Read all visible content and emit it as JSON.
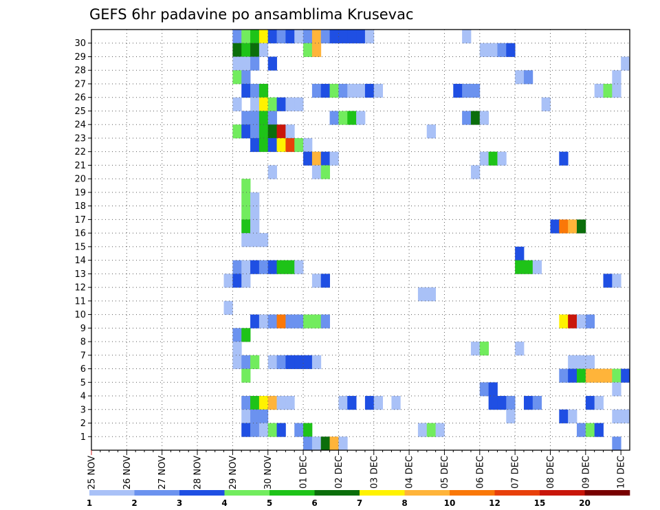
{
  "chart_data": {
    "type": "heatmap",
    "title": "GEFS 6hr padavine po ansamblima Krusevac",
    "xlabel": "",
    "ylabel": "",
    "x_ticks": [
      "25 NOV",
      "26 NOV",
      "27 NOV",
      "28 NOV",
      "29 NOV",
      "30 NOV",
      "01 DEC",
      "02 DEC",
      "03 DEC",
      "04 DEC",
      "05 DEC",
      "06 DEC",
      "07 DEC",
      "08 DEC",
      "09 DEC",
      "10 DEC"
    ],
    "x_tick_step_count": 4,
    "time_steps_per_day": 4,
    "time_step_count": 61,
    "y_ticks": [
      "1",
      "2",
      "3",
      "4",
      "5",
      "6",
      "7",
      "8",
      "9",
      "10",
      "11",
      "12",
      "13",
      "14",
      "15",
      "16",
      "17",
      "18",
      "19",
      "20",
      "21",
      "22",
      "23",
      "24",
      "25",
      "26",
      "27",
      "28",
      "29",
      "30"
    ],
    "member_count": 31,
    "grid": true,
    "legend_position": "bottom",
    "legend": {
      "labels": [
        "1",
        "2",
        "3",
        "4",
        "5",
        "6",
        "7",
        "8",
        "10",
        "12",
        "15",
        "20"
      ],
      "colors": [
        "#a9c1f7",
        "#6b92ef",
        "#1f4fe3",
        "#72ec5e",
        "#1ec318",
        "#0b6e0b",
        "#fff200",
        "#ffb43a",
        "#fa7808",
        "#e8400a",
        "#c9160a",
        "#780000"
      ]
    },
    "values_note": "cells: [member, time_step, colour_class]; time_step 0 = 25 NOV 00Z, member 0 = unlabeled bottom row",
    "cells": [
      [
        30,
        16,
        2
      ],
      [
        30,
        17,
        4
      ],
      [
        30,
        18,
        5
      ],
      [
        30,
        19,
        7
      ],
      [
        30,
        20,
        3
      ],
      [
        30,
        21,
        2
      ],
      [
        30,
        22,
        3
      ],
      [
        30,
        23,
        1
      ],
      [
        30,
        24,
        2
      ],
      [
        30,
        25,
        8
      ],
      [
        30,
        26,
        2
      ],
      [
        30,
        27,
        3
      ],
      [
        30,
        28,
        3
      ],
      [
        30,
        29,
        3
      ],
      [
        30,
        30,
        3
      ],
      [
        30,
        31,
        1
      ],
      [
        30,
        42,
        1
      ],
      [
        29,
        16,
        6
      ],
      [
        29,
        17,
        5
      ],
      [
        29,
        18,
        6
      ],
      [
        29,
        19,
        1
      ],
      [
        29,
        24,
        4
      ],
      [
        29,
        25,
        8
      ],
      [
        29,
        44,
        1
      ],
      [
        29,
        45,
        1
      ],
      [
        29,
        46,
        2
      ],
      [
        29,
        47,
        3
      ],
      [
        28,
        16,
        1
      ],
      [
        28,
        17,
        1
      ],
      [
        28,
        18,
        2
      ],
      [
        28,
        20,
        3
      ],
      [
        28,
        60,
        1
      ],
      [
        27,
        16,
        4
      ],
      [
        27,
        17,
        2
      ],
      [
        27,
        48,
        1
      ],
      [
        27,
        49,
        2
      ],
      [
        27,
        59,
        1
      ],
      [
        26,
        17,
        3
      ],
      [
        26,
        18,
        2
      ],
      [
        26,
        19,
        5
      ],
      [
        26,
        25,
        2
      ],
      [
        26,
        26,
        3
      ],
      [
        26,
        27,
        4
      ],
      [
        26,
        28,
        2
      ],
      [
        26,
        29,
        1
      ],
      [
        26,
        30,
        1
      ],
      [
        26,
        31,
        3
      ],
      [
        26,
        32,
        1
      ],
      [
        26,
        41,
        3
      ],
      [
        26,
        42,
        2
      ],
      [
        26,
        43,
        2
      ],
      [
        26,
        57,
        1
      ],
      [
        26,
        58,
        4
      ],
      [
        26,
        59,
        1
      ],
      [
        25,
        16,
        1
      ],
      [
        25,
        18,
        1
      ],
      [
        25,
        19,
        7
      ],
      [
        25,
        20,
        4
      ],
      [
        25,
        21,
        3
      ],
      [
        25,
        22,
        1
      ],
      [
        25,
        23,
        1
      ],
      [
        25,
        51,
        1
      ],
      [
        24,
        17,
        2
      ],
      [
        24,
        18,
        2
      ],
      [
        24,
        19,
        5
      ],
      [
        24,
        20,
        2
      ],
      [
        24,
        27,
        2
      ],
      [
        24,
        28,
        4
      ],
      [
        24,
        29,
        5
      ],
      [
        24,
        30,
        1
      ],
      [
        24,
        42,
        2
      ],
      [
        24,
        43,
        6
      ],
      [
        24,
        44,
        1
      ],
      [
        23,
        16,
        4
      ],
      [
        23,
        17,
        3
      ],
      [
        23,
        18,
        2
      ],
      [
        23,
        19,
        5
      ],
      [
        23,
        20,
        6
      ],
      [
        23,
        21,
        11
      ],
      [
        23,
        22,
        1
      ],
      [
        23,
        38,
        1
      ],
      [
        22,
        18,
        3
      ],
      [
        22,
        19,
        5
      ],
      [
        22,
        20,
        3
      ],
      [
        22,
        21,
        7
      ],
      [
        22,
        22,
        10
      ],
      [
        22,
        23,
        4
      ],
      [
        22,
        24,
        1
      ],
      [
        21,
        24,
        3
      ],
      [
        21,
        25,
        8
      ],
      [
        21,
        26,
        3
      ],
      [
        21,
        27,
        1
      ],
      [
        21,
        44,
        1
      ],
      [
        21,
        45,
        5
      ],
      [
        21,
        46,
        1
      ],
      [
        21,
        53,
        3
      ],
      [
        20,
        20,
        1
      ],
      [
        20,
        25,
        1
      ],
      [
        20,
        26,
        4
      ],
      [
        20,
        43,
        1
      ],
      [
        19,
        17,
        4
      ],
      [
        18,
        17,
        4
      ],
      [
        18,
        18,
        1
      ],
      [
        17,
        17,
        4
      ],
      [
        17,
        18,
        1
      ],
      [
        16,
        17,
        5
      ],
      [
        16,
        18,
        1
      ],
      [
        16,
        52,
        3
      ],
      [
        16,
        53,
        9
      ],
      [
        16,
        54,
        8
      ],
      [
        16,
        55,
        6
      ],
      [
        15,
        17,
        1
      ],
      [
        15,
        18,
        1
      ],
      [
        15,
        19,
        1
      ],
      [
        14,
        48,
        3
      ],
      [
        13,
        16,
        2
      ],
      [
        13,
        17,
        1
      ],
      [
        13,
        18,
        3
      ],
      [
        13,
        19,
        2
      ],
      [
        13,
        20,
        3
      ],
      [
        13,
        21,
        5
      ],
      [
        13,
        22,
        5
      ],
      [
        13,
        23,
        1
      ],
      [
        13,
        48,
        5
      ],
      [
        13,
        49,
        5
      ],
      [
        13,
        50,
        1
      ],
      [
        12,
        15,
        1
      ],
      [
        12,
        16,
        3
      ],
      [
        12,
        17,
        1
      ],
      [
        12,
        25,
        1
      ],
      [
        12,
        26,
        3
      ],
      [
        12,
        58,
        3
      ],
      [
        12,
        59,
        1
      ],
      [
        11,
        37,
        1
      ],
      [
        11,
        38,
        1
      ],
      [
        10,
        15,
        1
      ],
      [
        9,
        18,
        3
      ],
      [
        9,
        19,
        1
      ],
      [
        9,
        20,
        2
      ],
      [
        9,
        21,
        9
      ],
      [
        9,
        22,
        2
      ],
      [
        9,
        23,
        2
      ],
      [
        9,
        24,
        4
      ],
      [
        9,
        25,
        4
      ],
      [
        9,
        26,
        2
      ],
      [
        9,
        53,
        7
      ],
      [
        9,
        54,
        11
      ],
      [
        9,
        55,
        1
      ],
      [
        9,
        56,
        2
      ],
      [
        8,
        16,
        2
      ],
      [
        8,
        17,
        5
      ],
      [
        7,
        16,
        1
      ],
      [
        7,
        43,
        1
      ],
      [
        7,
        44,
        4
      ],
      [
        7,
        48,
        1
      ],
      [
        6,
        16,
        1
      ],
      [
        6,
        17,
        2
      ],
      [
        6,
        18,
        4
      ],
      [
        6,
        20,
        1
      ],
      [
        6,
        21,
        2
      ],
      [
        6,
        22,
        3
      ],
      [
        6,
        23,
        3
      ],
      [
        6,
        24,
        3
      ],
      [
        6,
        25,
        1
      ],
      [
        6,
        54,
        1
      ],
      [
        6,
        55,
        1
      ],
      [
        6,
        56,
        1
      ],
      [
        5,
        17,
        4
      ],
      [
        5,
        53,
        2
      ],
      [
        5,
        54,
        3
      ],
      [
        5,
        55,
        5
      ],
      [
        5,
        56,
        8
      ],
      [
        5,
        57,
        8
      ],
      [
        5,
        58,
        8
      ],
      [
        5,
        59,
        4
      ],
      [
        5,
        60,
        3
      ],
      [
        4,
        44,
        2
      ],
      [
        4,
        45,
        3
      ],
      [
        4,
        59,
        1
      ],
      [
        3,
        17,
        2
      ],
      [
        3,
        18,
        5
      ],
      [
        3,
        19,
        7
      ],
      [
        3,
        20,
        8
      ],
      [
        3,
        21,
        1
      ],
      [
        3,
        22,
        1
      ],
      [
        3,
        28,
        1
      ],
      [
        3,
        29,
        3
      ],
      [
        3,
        31,
        3
      ],
      [
        3,
        32,
        1
      ],
      [
        3,
        34,
        1
      ],
      [
        3,
        45,
        3
      ],
      [
        3,
        46,
        3
      ],
      [
        3,
        47,
        2
      ],
      [
        3,
        49,
        3
      ],
      [
        3,
        50,
        2
      ],
      [
        3,
        56,
        3
      ],
      [
        3,
        57,
        1
      ],
      [
        2,
        17,
        1
      ],
      [
        2,
        18,
        2
      ],
      [
        2,
        19,
        2
      ],
      [
        2,
        47,
        1
      ],
      [
        2,
        53,
        3
      ],
      [
        2,
        54,
        1
      ],
      [
        2,
        59,
        1
      ],
      [
        2,
        60,
        1
      ],
      [
        1,
        17,
        3
      ],
      [
        1,
        18,
        2
      ],
      [
        1,
        19,
        1
      ],
      [
        1,
        20,
        4
      ],
      [
        1,
        21,
        3
      ],
      [
        1,
        23,
        2
      ],
      [
        1,
        24,
        5
      ],
      [
        1,
        37,
        1
      ],
      [
        1,
        38,
        4
      ],
      [
        1,
        39,
        1
      ],
      [
        1,
        55,
        2
      ],
      [
        1,
        56,
        4
      ],
      [
        1,
        57,
        3
      ],
      [
        0,
        24,
        2
      ],
      [
        0,
        25,
        1
      ],
      [
        0,
        26,
        6
      ],
      [
        0,
        27,
        8
      ],
      [
        0,
        28,
        1
      ],
      [
        0,
        59,
        2
      ]
    ]
  }
}
